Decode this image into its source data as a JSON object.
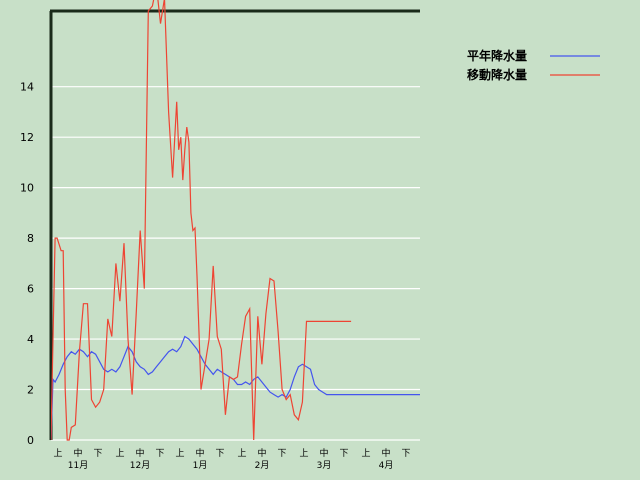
{
  "chart_data": {
    "type": "line",
    "title": "",
    "xlabel": "",
    "ylabel": "",
    "ylim": [
      0,
      17
    ],
    "yticks": [
      0,
      2,
      4,
      6,
      8,
      10,
      12,
      14
    ],
    "grid": true,
    "legend_position": "top-right",
    "x_sub_labels": [
      "上",
      "中",
      "下",
      "上",
      "中",
      "下",
      "上",
      "中",
      "下",
      "上",
      "中",
      "下",
      "上",
      "中",
      "下",
      "上",
      "中",
      "下"
    ],
    "x_month_labels": [
      "11月",
      "12月",
      "1月",
      "2月",
      "3月",
      "4月"
    ],
    "series": [
      {
        "name": "平年降水量",
        "color": "#4455ee",
        "x": [
          0,
          1,
          2,
          4,
          6,
          8,
          10,
          12,
          14,
          16,
          18,
          20,
          22,
          24,
          26,
          28,
          30,
          32,
          34,
          36,
          38,
          40,
          42,
          44,
          46,
          48,
          50,
          52,
          54,
          56,
          58,
          60,
          62,
          64,
          66,
          68,
          70,
          72,
          74,
          76,
          78,
          80,
          82,
          84,
          86,
          88,
          90,
          92,
          94,
          96,
          98,
          100,
          102,
          104,
          106,
          108,
          110,
          112,
          114,
          116,
          118,
          120,
          122,
          124,
          126,
          128,
          130,
          132,
          134,
          136,
          138,
          140,
          142,
          144,
          146,
          148,
          150,
          152,
          154,
          156,
          158,
          160,
          162,
          164,
          166,
          168,
          170,
          172,
          174,
          176,
          178,
          180,
          182
        ],
        "values": [
          0,
          2.4,
          2.3,
          2.6,
          3.0,
          3.3,
          3.5,
          3.4,
          3.6,
          3.5,
          3.3,
          3.5,
          3.4,
          3.1,
          2.8,
          2.7,
          2.8,
          2.7,
          2.9,
          3.3,
          3.7,
          3.5,
          3.1,
          2.9,
          2.8,
          2.6,
          2.7,
          2.9,
          3.1,
          3.3,
          3.5,
          3.6,
          3.5,
          3.7,
          4.1,
          4.0,
          3.8,
          3.6,
          3.3,
          3.0,
          2.8,
          2.6,
          2.8,
          2.7,
          2.6,
          2.5,
          2.4,
          2.2,
          2.2,
          2.3,
          2.2,
          2.4,
          2.5,
          2.3,
          2.1,
          1.9,
          1.8,
          1.7,
          1.8,
          1.7,
          2.0,
          2.5,
          2.9,
          3.0,
          2.9,
          2.8,
          2.2,
          2.0,
          1.9,
          1.8,
          1.8,
          1.8,
          1.8,
          1.8,
          1.8,
          1.8,
          1.8,
          1.8,
          1.8,
          1.8,
          1.8,
          1.8,
          1.8,
          1.8,
          1.8,
          1.8,
          1.8,
          1.8,
          1.8,
          1.8,
          1.8,
          1.8,
          1.8
        ]
      },
      {
        "name": "移動降水量",
        "color": "#ee4433",
        "x": [
          0,
          1,
          2,
          3,
          5,
          6,
          7,
          8,
          9,
          10,
          12,
          14,
          16,
          18,
          20,
          22,
          24,
          26,
          28,
          30,
          32,
          34,
          36,
          38,
          40,
          42,
          44,
          46,
          48,
          50,
          52,
          54,
          56,
          58,
          60,
          62,
          63,
          64,
          65,
          66,
          67,
          68,
          69,
          70,
          71,
          72,
          74,
          76,
          78,
          80,
          82,
          84,
          86,
          88,
          90,
          92,
          94,
          96,
          98,
          100,
          102,
          104,
          106,
          108,
          110,
          112,
          114,
          116,
          118,
          120,
          122,
          124,
          126,
          128,
          130,
          132,
          134,
          136,
          138,
          140,
          142,
          144,
          146,
          148
        ],
        "values": [
          0,
          4.0,
          8.0,
          8.0,
          7.5,
          7.5,
          2.0,
          0,
          0,
          0.5,
          0.6,
          3.5,
          5.4,
          5.4,
          1.6,
          1.3,
          1.5,
          2.0,
          4.8,
          4.1,
          7.0,
          5.5,
          7.8,
          4.0,
          1.8,
          5.0,
          8.3,
          6.0,
          17.0,
          17.2,
          18.0,
          16.5,
          17.5,
          13.0,
          10.4,
          13.4,
          11.5,
          12.0,
          10.3,
          11.5,
          12.4,
          11.8,
          9.0,
          8.3,
          8.4,
          6.5,
          2.0,
          3.0,
          4.0,
          6.9,
          4.1,
          3.6,
          1.0,
          2.5,
          2.4,
          2.5,
          3.8,
          4.9,
          5.2,
          0,
          4.9,
          3.0,
          5.0,
          6.4,
          6.3,
          4.3,
          2.0,
          1.6,
          1.8,
          1.0,
          0.8,
          1.5,
          4.7,
          4.7,
          4.7,
          4.7,
          4.7,
          4.7,
          4.7,
          4.7,
          4.7,
          4.7,
          4.7,
          4.7
        ]
      }
    ]
  }
}
